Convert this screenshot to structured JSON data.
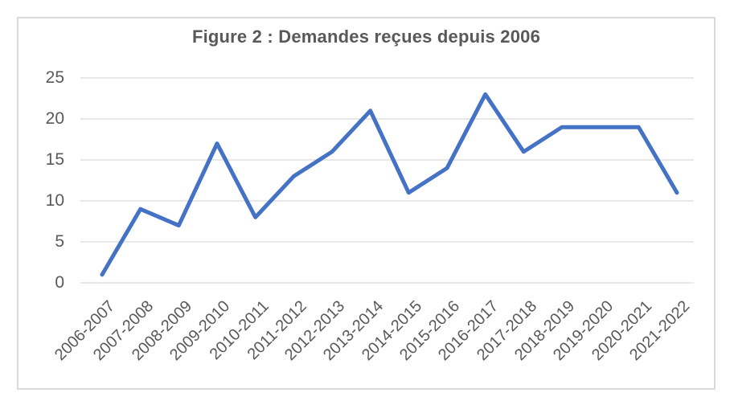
{
  "chart_data": {
    "type": "line",
    "title": "Figure 2 : Demandes reçues depuis 2006",
    "categories": [
      "2006-2007",
      "2007-2008",
      "2008-2009",
      "2009-2010",
      "2010-2011",
      "2011-2012",
      "2012-2013",
      "2013-2014",
      "2014-2015",
      "2015-2016",
      "2016-2017",
      "2017-2018",
      "2018-2019",
      "2019-2020",
      "2020-2021",
      "2021-2022"
    ],
    "values": [
      1,
      9,
      7,
      17,
      8,
      13,
      16,
      21,
      11,
      14,
      23,
      16,
      19,
      19,
      19,
      11
    ],
    "xlabel": "",
    "ylabel": "",
    "ylim": [
      0,
      25
    ],
    "ytick_step": 5,
    "yticks": [
      0,
      5,
      10,
      15,
      20,
      25
    ],
    "grid": "horizontal",
    "legend": "none",
    "colors": {
      "line": "#4472C4",
      "gridline": "#D9D9D9",
      "border": "#D9D9D9",
      "text": "#595959",
      "background": "#FFFFFF"
    }
  }
}
